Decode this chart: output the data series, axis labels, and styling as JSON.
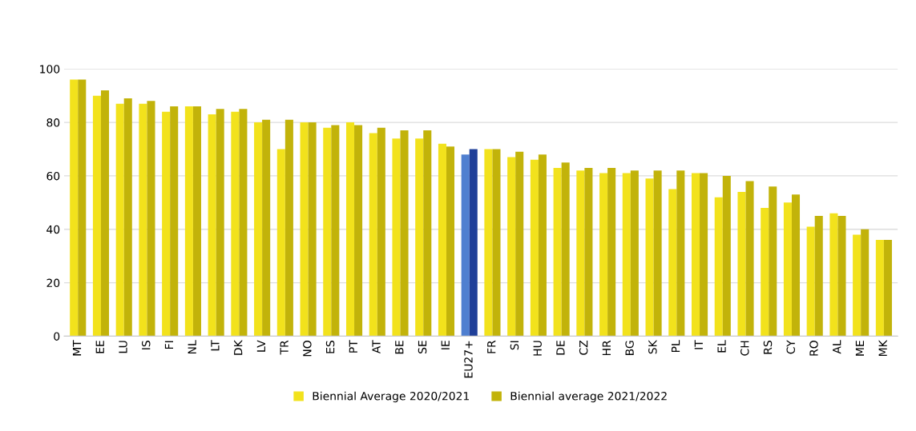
{
  "chart_data": {
    "type": "bar",
    "categories": [
      "MT",
      "EE",
      "LU",
      "IS",
      "FI",
      "NL",
      "LT",
      "DK",
      "LV",
      "TR",
      "NO",
      "ES",
      "PT",
      "AT",
      "BE",
      "SE",
      "IE",
      "EU27+",
      "FR",
      "SI",
      "HU",
      "DE",
      "CZ",
      "HR",
      "BG",
      "SK",
      "PL",
      "IT",
      "EL",
      "CH",
      "RS",
      "CY",
      "RO",
      "AL",
      "ME",
      "MK"
    ],
    "series": [
      {
        "name": "Biennial Average 2020/2021",
        "color": "#f2e21c",
        "colors": [
          "#f2e21c",
          "#f2e21c",
          "#f2e21c",
          "#f2e21c",
          "#f2e21c",
          "#f2e21c",
          "#f2e21c",
          "#f2e21c",
          "#f2e21c",
          "#f2e21c",
          "#f2e21c",
          "#f2e21c",
          "#f2e21c",
          "#f2e21c",
          "#f2e21c",
          "#f2e21c",
          "#f2e21c",
          "#4f7fd0",
          "#f2e21c",
          "#f2e21c",
          "#f2e21c",
          "#f2e21c",
          "#f2e21c",
          "#f2e21c",
          "#f2e21c",
          "#f2e21c",
          "#f2e21c",
          "#f2e21c",
          "#f2e21c",
          "#f2e21c",
          "#f2e21c",
          "#f2e21c",
          "#f2e21c",
          "#f2e21c",
          "#f2e21c",
          "#f2e21c"
        ],
        "values": [
          96,
          90,
          87,
          87,
          84,
          86,
          83,
          84,
          80,
          70,
          80,
          78,
          80,
          76,
          74,
          74,
          72,
          68,
          70,
          67,
          66,
          63,
          62,
          61,
          61,
          59,
          55,
          61,
          52,
          54,
          48,
          50,
          41,
          46,
          38,
          36
        ]
      },
      {
        "name": "Biennial average 2021/2022",
        "color": "#c2b30a",
        "colors": [
          "#c2b30a",
          "#c2b30a",
          "#c2b30a",
          "#c2b30a",
          "#c2b30a",
          "#c2b30a",
          "#c2b30a",
          "#c2b30a",
          "#c2b30a",
          "#c2b30a",
          "#c2b30a",
          "#c2b30a",
          "#c2b30a",
          "#c2b30a",
          "#c2b30a",
          "#c2b30a",
          "#c2b30a",
          "#1f3f99",
          "#c2b30a",
          "#c2b30a",
          "#c2b30a",
          "#c2b30a",
          "#c2b30a",
          "#c2b30a",
          "#c2b30a",
          "#c2b30a",
          "#c2b30a",
          "#c2b30a",
          "#c2b30a",
          "#c2b30a",
          "#c2b30a",
          "#c2b30a",
          "#c2b30a",
          "#c2b30a",
          "#c2b30a",
          "#c2b30a"
        ],
        "values": [
          96,
          92,
          89,
          88,
          86,
          86,
          85,
          85,
          81,
          81,
          80,
          79,
          79,
          78,
          77,
          77,
          71,
          70,
          70,
          69,
          68,
          65,
          63,
          63,
          62,
          62,
          62,
          61,
          60,
          58,
          56,
          53,
          45,
          45,
          40,
          36
        ]
      }
    ],
    "ylim": [
      0,
      100
    ],
    "yticks": [
      0,
      20,
      40,
      60,
      80,
      100
    ],
    "grid": "y",
    "legend": "bottom"
  }
}
